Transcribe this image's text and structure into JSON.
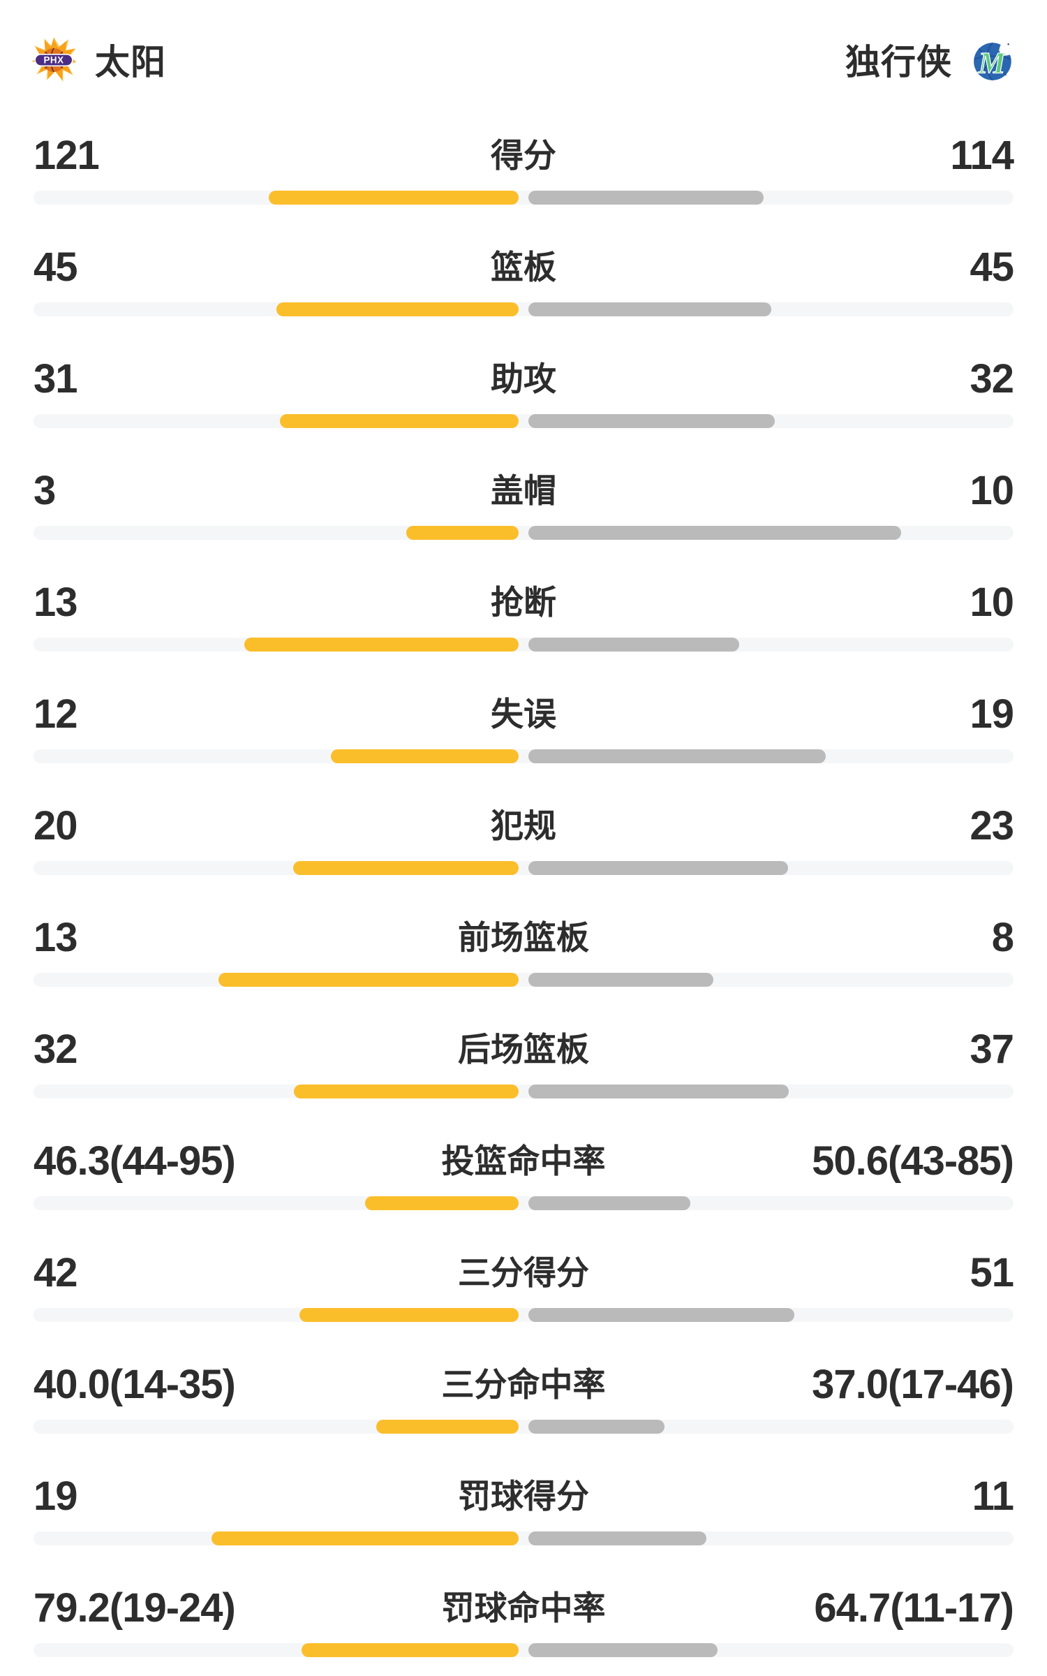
{
  "header": {
    "home_team": {
      "name": "太阳",
      "logo_icon": "suns-logo",
      "logo_text": "PHX"
    },
    "away_team": {
      "name": "独行侠",
      "logo_icon": "mavericks-logo",
      "logo_text": "M"
    }
  },
  "colors": {
    "home_bar": "#fbbe2b",
    "away_bar": "#bababa",
    "track": "#f5f6f8",
    "text": "#2d2d2d",
    "suns_purple": "#4b2e83",
    "suns_orange": "#f9a11b",
    "suns_ball": "#e2731c",
    "mavs_blue": "#2b66b1",
    "mavs_green": "#5bc97e"
  },
  "chart_data": {
    "type": "bar",
    "subtype": "head-to-head tornado comparison",
    "left_series": "太阳",
    "right_series": "独行侠",
    "legend_position": "header",
    "rows": [
      {
        "label": "得分",
        "left": "121",
        "right": "114",
        "left_bar_pct": 51.5,
        "right_bar_pct": 48.5
      },
      {
        "label": "篮板",
        "left": "45",
        "right": "45",
        "left_bar_pct": 50.0,
        "right_bar_pct": 50.0
      },
      {
        "label": "助攻",
        "left": "31",
        "right": "32",
        "left_bar_pct": 49.2,
        "right_bar_pct": 50.8
      },
      {
        "label": "盖帽",
        "left": "3",
        "right": "10",
        "left_bar_pct": 23.1,
        "right_bar_pct": 76.9
      },
      {
        "label": "抢断",
        "left": "13",
        "right": "10",
        "left_bar_pct": 56.5,
        "right_bar_pct": 43.5
      },
      {
        "label": "失误",
        "left": "12",
        "right": "19",
        "left_bar_pct": 38.7,
        "right_bar_pct": 61.3
      },
      {
        "label": "犯规",
        "left": "20",
        "right": "23",
        "left_bar_pct": 46.5,
        "right_bar_pct": 53.5
      },
      {
        "label": "前场篮板",
        "left": "13",
        "right": "8",
        "left_bar_pct": 61.9,
        "right_bar_pct": 38.1
      },
      {
        "label": "后场篮板",
        "left": "32",
        "right": "37",
        "left_bar_pct": 46.4,
        "right_bar_pct": 53.6
      },
      {
        "label": "投篮命中率",
        "left": "46.3(44-95)",
        "right": "50.6(43-85)",
        "left_bar_pct": 31.7,
        "right_bar_pct": 33.4
      },
      {
        "label": "三分得分",
        "left": "42",
        "right": "51",
        "left_bar_pct": 45.2,
        "right_bar_pct": 54.8
      },
      {
        "label": "三分命中率",
        "left": "40.0(14-35)",
        "right": "37.0(17-46)",
        "left_bar_pct": 29.3,
        "right_bar_pct": 28.1
      },
      {
        "label": "罚球得分",
        "left": "19",
        "right": "11",
        "left_bar_pct": 63.3,
        "right_bar_pct": 36.7
      },
      {
        "label": "罚球命中率",
        "left": "79.2(19-24)",
        "right": "64.7(11-17)",
        "left_bar_pct": 44.7,
        "right_bar_pct": 39.0
      }
    ]
  }
}
